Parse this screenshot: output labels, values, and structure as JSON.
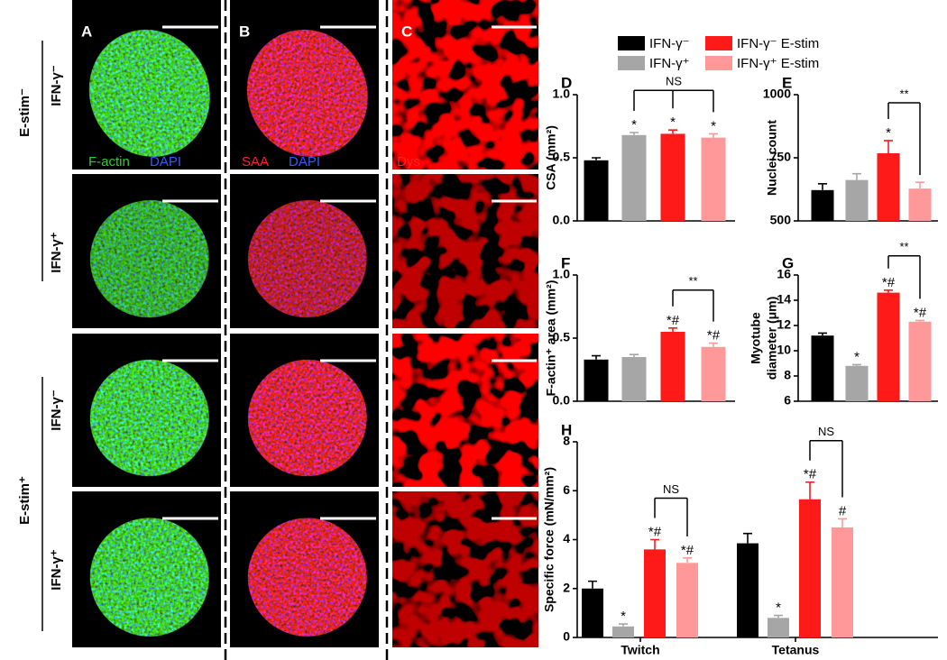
{
  "figure": {
    "panels": [
      "A",
      "B",
      "C"
    ],
    "row_groups": [
      "E-stim⁻",
      "E-stim⁺"
    ],
    "row_labels": [
      "IFN-γ⁻",
      "IFN-γ⁺",
      "IFN-γ⁻",
      "IFN-γ⁺"
    ],
    "stains": [
      [
        "F-actin",
        "DAPI"
      ],
      [
        "SAA",
        "DAPI"
      ],
      [
        "Dys"
      ]
    ]
  },
  "legend": [
    {
      "name": "IFN-γ⁻",
      "color": "#000000"
    },
    {
      "name": "IFN-γ⁺",
      "color": "#a6a6a6"
    },
    {
      "name": "IFN-γ⁻ E-stim",
      "color": "#ff1a1a"
    },
    {
      "name": "IFN-γ⁺ E-stim",
      "color": "#ff9999"
    }
  ],
  "chart_data": [
    {
      "type": "bar",
      "title": "D",
      "ylabel": "CSA (mm²)",
      "values": [
        0.48,
        0.68,
        0.69,
        0.66
      ],
      "errors": [
        0.02,
        0.02,
        0.03,
        0.03
      ],
      "colors": [
        "#000000",
        "#a6a6a6",
        "#ff1a1a",
        "#ff9999"
      ],
      "marks": [
        null,
        "*",
        "*",
        "*"
      ],
      "bracket_label": "NS",
      "ylim": [
        0,
        1
      ],
      "yticks": [
        {
          "value": 0,
          "label": "0.0"
        },
        0.5,
        {
          "value": 1,
          "label": "1.0"
        }
      ]
    },
    {
      "type": "bar",
      "title": "E",
      "ylabel": "Nuclei count",
      "values": [
        622,
        662,
        768,
        628
      ],
      "errors": [
        25,
        25,
        50,
        25
      ],
      "colors": [
        "#000000",
        "#a6a6a6",
        "#ff1a1a",
        "#ff9999"
      ],
      "marks": [
        null,
        null,
        "*",
        null
      ],
      "bracket_label": "**",
      "ylim": [
        500,
        1000
      ],
      "yticks": [
        500,
        750,
        1000
      ]
    },
    {
      "type": "bar",
      "title": "F",
      "ylabel": "F-actin⁺ area (mm²)",
      "values": [
        0.33,
        0.35,
        0.55,
        0.43
      ],
      "errors": [
        0.03,
        0.02,
        0.03,
        0.03
      ],
      "colors": [
        "#000000",
        "#a6a6a6",
        "#ff1a1a",
        "#ff9999"
      ],
      "marks": [
        null,
        null,
        "*#",
        "*#"
      ],
      "bracket_label": "**",
      "ylim": [
        0,
        1
      ],
      "yticks": [
        {
          "value": 0,
          "label": "0.0"
        },
        0.5,
        {
          "value": 1,
          "label": "1.0"
        }
      ]
    },
    {
      "type": "bar",
      "title": "G",
      "ylabel": [
        "Myotube",
        "diameter (μm)"
      ],
      "values": [
        11.2,
        8.8,
        14.6,
        12.3
      ],
      "errors": [
        0.2,
        0.1,
        0.2,
        0.1
      ],
      "colors": [
        "#000000",
        "#a6a6a6",
        "#ff1a1a",
        "#ff9999"
      ],
      "marks": [
        null,
        "*",
        "*#",
        "*#"
      ],
      "bracket_label": "**",
      "ylim": [
        6,
        16
      ],
      "yticks": [
        6,
        8,
        10,
        12,
        14,
        16
      ]
    },
    {
      "type": "grouped-bar",
      "title": "H",
      "ylabel": "Specific force (mN/mm²)",
      "categories": [
        "Twitch",
        "Tetanus"
      ],
      "series": [
        {
          "name": "IFN-γ⁻",
          "color": "#000000",
          "values": [
            2.0,
            3.85
          ],
          "errors": [
            0.3,
            0.4
          ],
          "marks": [
            null,
            null
          ]
        },
        {
          "name": "IFN-γ⁺",
          "color": "#a6a6a6",
          "values": [
            0.45,
            0.8
          ],
          "errors": [
            0.1,
            0.1
          ],
          "marks": [
            "*",
            "*"
          ]
        },
        {
          "name": "IFN-γ⁻ E-stim",
          "color": "#ff1a1a",
          "values": [
            3.6,
            5.65
          ],
          "errors": [
            0.4,
            0.7
          ],
          "marks": [
            "*#",
            "*#"
          ]
        },
        {
          "name": "IFN-γ⁺ E-stim",
          "color": "#ff9999",
          "values": [
            3.05,
            4.5
          ],
          "errors": [
            0.2,
            0.35
          ],
          "marks": [
            "*#",
            "#"
          ]
        }
      ],
      "bracket_labels": [
        "NS",
        "NS"
      ],
      "ylim": [
        0,
        8
      ],
      "yticks": [
        0,
        2,
        4,
        6,
        8
      ]
    }
  ]
}
